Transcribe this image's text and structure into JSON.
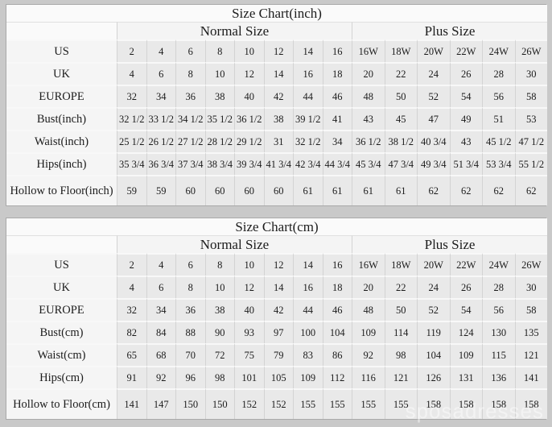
{
  "page": {
    "background_color": "#c9c9c9",
    "cell_color": "#e9e9e9",
    "label_cell_color": "#f5f5f5",
    "text_color": "#1c1c1c"
  },
  "watermark": {
    "text": "sposadresses"
  },
  "chart_data": [
    {
      "type": "table",
      "title": "Size Chart(inch)",
      "column_groups": [
        {
          "label": "Normal Size",
          "span": 8
        },
        {
          "label": "Plus Size",
          "span": 6
        }
      ],
      "rows": [
        {
          "label": "US",
          "values": [
            "2",
            "4",
            "6",
            "8",
            "10",
            "12",
            "14",
            "16",
            "16W",
            "18W",
            "20W",
            "22W",
            "24W",
            "26W"
          ]
        },
        {
          "label": "UK",
          "values": [
            "4",
            "6",
            "8",
            "10",
            "12",
            "14",
            "16",
            "18",
            "20",
            "22",
            "24",
            "26",
            "28",
            "30"
          ]
        },
        {
          "label": "EUROPE",
          "values": [
            "32",
            "34",
            "36",
            "38",
            "40",
            "42",
            "44",
            "46",
            "48",
            "50",
            "52",
            "54",
            "56",
            "58"
          ]
        },
        {
          "label": "Bust(inch)",
          "values": [
            "32 1/2",
            "33 1/2",
            "34 1/2",
            "35 1/2",
            "36 1/2",
            "38",
            "39 1/2",
            "41",
            "43",
            "45",
            "47",
            "49",
            "51",
            "53"
          ]
        },
        {
          "label": "Waist(inch)",
          "values": [
            "25 1/2",
            "26 1/2",
            "27 1/2",
            "28 1/2",
            "29 1/2",
            "31",
            "32 1/2",
            "34",
            "36 1/2",
            "38 1/2",
            "40 3/4",
            "43",
            "45 1/2",
            "47 1/2"
          ]
        },
        {
          "label": "Hips(inch)",
          "values": [
            "35 3/4",
            "36 3/4",
            "37 3/4",
            "38 3/4",
            "39 3/4",
            "41 3/4",
            "42 3/4",
            "44 3/4",
            "45 3/4",
            "47 3/4",
            "49 3/4",
            "51 3/4",
            "53 3/4",
            "55 1/2"
          ]
        },
        {
          "label": "Hollow to Floor(inch)",
          "values": [
            "59",
            "59",
            "60",
            "60",
            "60",
            "60",
            "61",
            "61",
            "61",
            "61",
            "62",
            "62",
            "62",
            "62"
          ]
        }
      ]
    },
    {
      "type": "table",
      "title": "Size Chart(cm)",
      "column_groups": [
        {
          "label": "Normal Size",
          "span": 8
        },
        {
          "label": "Plus Size",
          "span": 6
        }
      ],
      "rows": [
        {
          "label": "US",
          "values": [
            "2",
            "4",
            "6",
            "8",
            "10",
            "12",
            "14",
            "16",
            "16W",
            "18W",
            "20W",
            "22W",
            "24W",
            "26W"
          ]
        },
        {
          "label": "UK",
          "values": [
            "4",
            "6",
            "8",
            "10",
            "12",
            "14",
            "16",
            "18",
            "20",
            "22",
            "24",
            "26",
            "28",
            "30"
          ]
        },
        {
          "label": "EUROPE",
          "values": [
            "32",
            "34",
            "36",
            "38",
            "40",
            "42",
            "44",
            "46",
            "48",
            "50",
            "52",
            "54",
            "56",
            "58"
          ]
        },
        {
          "label": "Bust(cm)",
          "values": [
            "82",
            "84",
            "88",
            "90",
            "93",
            "97",
            "100",
            "104",
            "109",
            "114",
            "119",
            "124",
            "130",
            "135"
          ]
        },
        {
          "label": "Waist(cm)",
          "values": [
            "65",
            "68",
            "70",
            "72",
            "75",
            "79",
            "83",
            "86",
            "92",
            "98",
            "104",
            "109",
            "115",
            "121"
          ]
        },
        {
          "label": "Hips(cm)",
          "values": [
            "91",
            "92",
            "96",
            "98",
            "101",
            "105",
            "109",
            "112",
            "116",
            "121",
            "126",
            "131",
            "136",
            "141"
          ]
        },
        {
          "label": "Hollow to Floor(cm)",
          "values": [
            "141",
            "147",
            "150",
            "150",
            "152",
            "152",
            "155",
            "155",
            "155",
            "155",
            "158",
            "158",
            "158",
            "158"
          ]
        }
      ]
    }
  ]
}
